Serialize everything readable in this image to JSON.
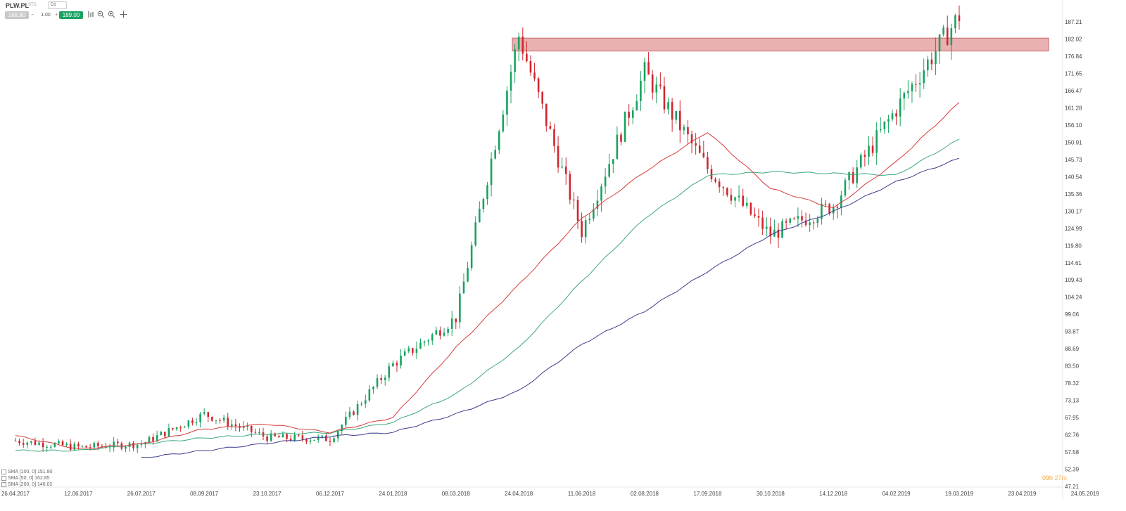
{
  "header": {
    "symbol": "PLW.PL",
    "symbol_type": "STC",
    "timeframe": "D1",
    "bid": "188.80",
    "quantity": "1.00",
    "ask": "189.00",
    "minus_label": "−",
    "plus_label": "+"
  },
  "icons": [
    "chart-type-icon",
    "zoom-out-icon",
    "zoom-in-icon",
    "crosshair-icon"
  ],
  "indicators": [
    {
      "label": "SMA [100, 0] 151.80",
      "color": "#3aa77b"
    },
    {
      "label": "SMA [50, 0] 162.85",
      "color": "#d63b3b"
    },
    {
      "label": "SMA [200, 0] 146.02",
      "color": "#3c3c8c"
    }
  ],
  "timer": {
    "hours": "09h",
    "minutes": "27m"
  },
  "colors": {
    "bull": "#1aa261",
    "bear": "#d0262e",
    "sma50": "#d63b3b",
    "sma100": "#3aa77b",
    "sma200": "#3c3c8c",
    "zone": "#e7a9aa",
    "zone_border": "#c9676a"
  },
  "chart_data": {
    "type": "candlestick",
    "title": "",
    "y_ticks": [
      187.21,
      182.02,
      176.84,
      171.65,
      166.47,
      161.28,
      156.1,
      150.91,
      145.73,
      140.54,
      135.36,
      130.17,
      124.99,
      119.8,
      114.61,
      109.43,
      104.24,
      99.06,
      93.87,
      88.69,
      83.5,
      78.32,
      73.13,
      67.95,
      62.76,
      57.58,
      52.39,
      47.21
    ],
    "y_tick_labels": [
      "187.21",
      "182.02",
      "176.84",
      "171.65",
      "166.47",
      "161.28",
      "156.10",
      "150.91",
      "145.73",
      "140.54",
      "135.36",
      "130.17",
      "124.99",
      "119.80",
      "114.61",
      "109.43",
      "104.24",
      "99.06",
      "93.87",
      "88.69",
      "83.50",
      "78.32",
      "73.13",
      "67.95",
      "62.76",
      "57.58",
      "52.39",
      "47.21"
    ],
    "x_ticks": [
      "26.04.2017",
      "12.06.2017",
      "26.07.2017",
      "08.09.2017",
      "23.10.2017",
      "06.12.2017",
      "24.01.2018",
      "08.03.2018",
      "24.04.2018",
      "11.06.2018",
      "02.08.2018",
      "17.09.2018",
      "30.10.2018",
      "14.12.2018",
      "04.02.2019",
      "19.03.2019",
      "23.04.2019",
      "24.05.2019"
    ],
    "ylim": [
      47.21,
      190.5
    ],
    "resistance_zone": [
      178.4,
      182.3
    ],
    "price_path": [
      [
        "26.04.2017",
        61
      ],
      [
        "12.06.2017",
        59
      ],
      [
        "26.07.2017",
        60
      ],
      [
        "08.09.2017",
        69
      ],
      [
        "23.10.2017",
        62
      ],
      [
        "06.12.2017",
        61.5
      ],
      [
        "24.01.2018",
        84
      ],
      [
        "08.03.2018",
        98
      ],
      [
        "24.04.2018",
        183
      ],
      [
        "11.06.2018",
        124
      ],
      [
        "02.08.2018",
        172
      ],
      [
        "17.09.2018",
        143
      ],
      [
        "30.10.2018",
        123
      ],
      [
        "14.12.2018",
        132
      ],
      [
        "04.02.2019",
        161
      ],
      [
        "19.03.2019",
        189
      ]
    ],
    "sma50": [
      [
        "26.04.2017",
        62.5
      ],
      [
        "12.06.2017",
        58.5
      ],
      [
        "26.07.2017",
        60
      ],
      [
        "08.09.2017",
        64.5
      ],
      [
        "23.10.2017",
        66
      ],
      [
        "06.12.2017",
        63.5
      ],
      [
        "24.01.2018",
        68
      ],
      [
        "08.03.2018",
        89
      ],
      [
        "24.04.2018",
        108
      ],
      [
        "11.06.2018",
        128
      ],
      [
        "02.08.2018",
        142
      ],
      [
        "17.09.2018",
        154
      ],
      [
        "30.10.2018",
        137
      ],
      [
        "14.12.2018",
        131
      ],
      [
        "04.02.2019",
        145
      ],
      [
        "19.03.2019",
        162.85
      ]
    ],
    "sma100": [
      [
        "26.04.2017",
        58
      ],
      [
        "12.06.2017",
        58
      ],
      [
        "26.07.2017",
        60
      ],
      [
        "08.09.2017",
        61.8
      ],
      [
        "23.10.2017",
        63
      ],
      [
        "06.12.2017",
        63.4
      ],
      [
        "24.01.2018",
        66.5
      ],
      [
        "08.03.2018",
        75
      ],
      [
        "24.04.2018",
        89
      ],
      [
        "11.06.2018",
        109
      ],
      [
        "02.08.2018",
        128
      ],
      [
        "17.09.2018",
        141
      ],
      [
        "30.10.2018",
        142
      ],
      [
        "14.12.2018",
        141.5
      ],
      [
        "04.02.2019",
        141
      ],
      [
        "19.03.2019",
        151.8
      ]
    ],
    "sma200": [
      [
        "26.07.2017",
        55.8
      ],
      [
        "08.09.2017",
        58
      ],
      [
        "23.10.2017",
        60.2
      ],
      [
        "06.12.2017",
        62.3
      ],
      [
        "24.01.2018",
        63.5
      ],
      [
        "08.03.2018",
        69
      ],
      [
        "24.04.2018",
        76
      ],
      [
        "11.06.2018",
        90
      ],
      [
        "02.08.2018",
        100
      ],
      [
        "17.09.2018",
        112
      ],
      [
        "30.10.2018",
        123
      ],
      [
        "14.12.2018",
        130
      ],
      [
        "04.02.2019",
        139
      ],
      [
        "19.03.2019",
        146.02
      ]
    ]
  }
}
